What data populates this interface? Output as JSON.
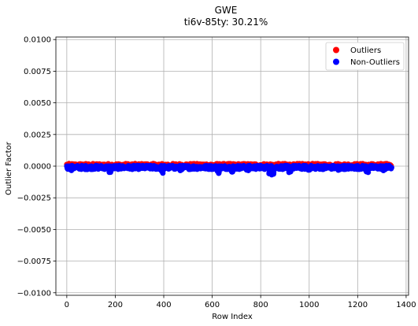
{
  "chart_data": {
    "type": "scatter",
    "title": "GWE",
    "subtitle": "ti6v-85ty: 30.21%",
    "xlabel": "Row Index",
    "ylabel": "Outlier Factor",
    "xlim": [
      -45,
      1410
    ],
    "ylim": [
      -0.0102,
      0.0102
    ],
    "xticks": [
      0,
      200,
      400,
      600,
      800,
      1000,
      1200,
      1400
    ],
    "xtick_labels": [
      "0",
      "200",
      "400",
      "600",
      "800",
      "1000",
      "1200",
      "1400"
    ],
    "yticks": [
      -0.01,
      -0.0075,
      -0.005,
      -0.0025,
      0.0,
      0.0025,
      0.005,
      0.0075,
      0.01
    ],
    "ytick_labels": [
      "−0.0100",
      "−0.0075",
      "−0.0050",
      "−0.0025",
      "0.0000",
      "0.0025",
      "0.0050",
      "0.0075",
      "0.0100"
    ],
    "grid": true,
    "legend_position": "upper right",
    "series": [
      {
        "name": "Outliers",
        "color": "#ff0000",
        "x_range": [
          0,
          1340
        ],
        "y_range": [
          0.0,
          0.0002
        ],
        "description_values": "points near the top edge of the band"
      },
      {
        "name": "Non-Outliers",
        "color": "#0000ff",
        "x_range": [
          0,
          1340
        ],
        "y_range": [
          -0.0007,
          0.0001
        ],
        "description_values": "dense band around zero with dips"
      }
    ],
    "dips": [
      {
        "x": 15,
        "y": -0.00035
      },
      {
        "x": 80,
        "y": -0.0003
      },
      {
        "x": 180,
        "y": -0.0005
      },
      {
        "x": 395,
        "y": -0.00055
      },
      {
        "x": 470,
        "y": -0.00035
      },
      {
        "x": 625,
        "y": -0.0006
      },
      {
        "x": 680,
        "y": -0.00045
      },
      {
        "x": 745,
        "y": -0.0004
      },
      {
        "x": 835,
        "y": -0.0006
      },
      {
        "x": 850,
        "y": -0.0007
      },
      {
        "x": 920,
        "y": -0.0005
      },
      {
        "x": 1000,
        "y": -0.0003
      },
      {
        "x": 1125,
        "y": -0.00035
      },
      {
        "x": 1240,
        "y": -0.0005
      },
      {
        "x": 1310,
        "y": -0.00035
      }
    ]
  }
}
